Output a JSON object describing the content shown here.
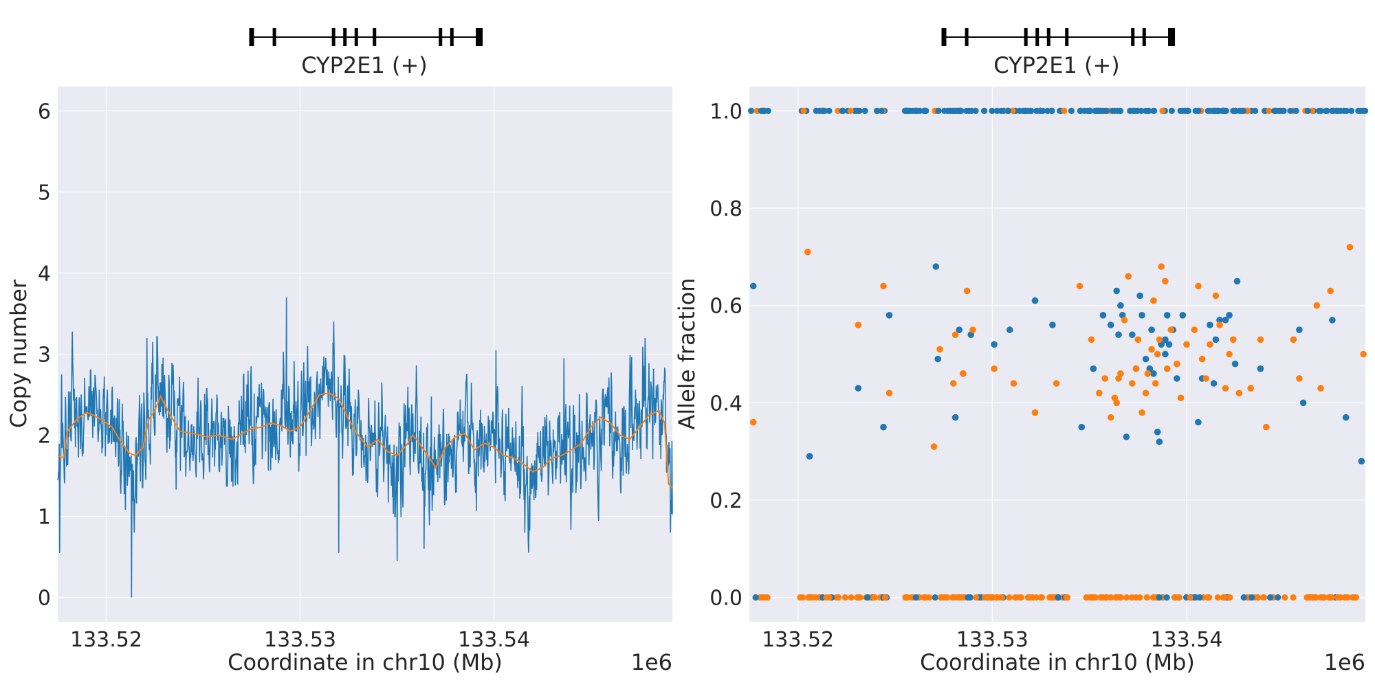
{
  "chart_data": [
    {
      "type": "line",
      "title": "",
      "gene": {
        "label": "CYP2E1 (+)",
        "exon_count": 9
      },
      "xlabel": "Coordinate in chr10 (Mb)",
      "ylabel": "Copy number",
      "x_offset_label": "1e6",
      "xlim": [
        133.5175,
        133.5492
      ],
      "ylim": [
        -0.3,
        6.3
      ],
      "xticks": [
        133.52,
        133.53,
        133.54
      ],
      "xtick_labels": [
        "133.52",
        "133.53",
        "133.54"
      ],
      "yticks": [
        0,
        1,
        2,
        3,
        4,
        5,
        6
      ],
      "ytick_labels": [
        "0",
        "1",
        "2",
        "3",
        "4",
        "5",
        "6"
      ],
      "grid": true,
      "series": [
        {
          "name": "raw copy number",
          "color": "#1f77b4",
          "points": "~1600 noisy values fluctuating around 2.0 (range approx. 0.0–3.7; spikes near 3.2 at 133.522, 3.7 at 133.529, 3.0 at 133.540 and 133.548; dips to 0.0 at 133.5213, 0.4 at 133.535)"
        },
        {
          "name": "smoothed copy number",
          "color": "#ff7f0e",
          "x": [
            133.5175,
            133.5178,
            133.518,
            133.5185,
            133.5188,
            133.519,
            133.5193,
            133.5197,
            133.5203,
            133.5208,
            133.5212,
            133.5215,
            133.5219,
            133.5222,
            133.5225,
            133.5228,
            133.5233,
            133.5238,
            133.5245,
            133.5252,
            133.5258,
            133.5265,
            133.527,
            133.5275,
            133.528,
            133.5285,
            133.529,
            133.5295,
            133.53,
            133.5305,
            133.531,
            133.5315,
            133.532,
            133.5325,
            133.533,
            133.5335,
            133.534,
            133.5345,
            133.535,
            133.5355,
            133.5358,
            133.536,
            133.5365,
            133.537,
            133.5375,
            133.538,
            133.5385,
            133.539,
            133.5395,
            133.54,
            133.5405,
            133.541,
            133.5415,
            133.542,
            133.5425,
            133.543,
            133.5435,
            133.544,
            133.5445,
            133.545,
            133.5455,
            133.546,
            133.5465,
            133.547,
            133.5475,
            133.548,
            133.5485,
            133.5488,
            133.549,
            133.5492
          ],
          "values": [
            1.75,
            1.72,
            2.05,
            2.2,
            2.25,
            2.28,
            2.25,
            2.2,
            2.1,
            1.9,
            1.78,
            1.75,
            1.85,
            2.2,
            2.3,
            2.48,
            2.25,
            2.05,
            2.02,
            1.98,
            2.0,
            1.95,
            2.02,
            2.08,
            2.1,
            2.15,
            2.12,
            2.05,
            2.1,
            2.3,
            2.5,
            2.52,
            2.45,
            2.2,
            2.0,
            1.85,
            1.95,
            1.8,
            1.75,
            1.88,
            2.0,
            1.95,
            1.78,
            1.6,
            1.85,
            1.98,
            2.02,
            1.82,
            1.9,
            1.85,
            1.75,
            1.72,
            1.65,
            1.55,
            1.6,
            1.72,
            1.75,
            1.82,
            1.9,
            2.1,
            2.22,
            2.15,
            2.0,
            1.95,
            2.1,
            2.25,
            2.3,
            2.15,
            1.4,
            1.35
          ]
        }
      ]
    },
    {
      "type": "scatter",
      "title": "",
      "gene": {
        "label": "CYP2E1 (+)",
        "exon_count": 9
      },
      "xlabel": "Coordinate in chr10 (Mb)",
      "ylabel": "Allele fraction",
      "x_offset_label": "1e6",
      "xlim": [
        133.5175,
        133.5492
      ],
      "ylim": [
        -0.05,
        1.05
      ],
      "xticks": [
        133.52,
        133.53,
        133.54
      ],
      "xtick_labels": [
        "133.52",
        "133.53",
        "133.54"
      ],
      "yticks": [
        0.0,
        0.2,
        0.4,
        0.6,
        0.8,
        1.0
      ],
      "ytick_labels": [
        "0.0",
        "0.2",
        "0.4",
        "0.6",
        "0.8",
        "1.0"
      ],
      "grid": true,
      "series": [
        {
          "name": "allele fraction (blue)",
          "color": "#1f77b4",
          "x": [
            133.5177,
            133.5206,
            133.5231,
            133.5244,
            133.5247,
            133.5271,
            133.5272,
            133.5281,
            133.5283,
            133.5285,
            133.5289,
            133.5301,
            133.5309,
            133.5322,
            133.5331,
            133.5346,
            133.5352,
            133.5357,
            133.5361,
            133.5364,
            133.5365,
            133.5366,
            133.5367,
            133.5369,
            133.5372,
            133.5374,
            133.5376,
            133.5377,
            133.5379,
            133.5381,
            133.5382,
            133.5383,
            133.5385,
            133.5386,
            133.5387,
            133.5389,
            133.5389,
            133.539,
            133.5391,
            133.5393,
            133.5395,
            133.5398,
            133.5406,
            133.5408,
            133.5412,
            133.5414,
            133.5415,
            133.5417,
            133.542,
            133.5422,
            133.5425,
            133.5426,
            133.5438,
            133.5458,
            133.546,
            133.5475,
            133.5482,
            133.549
          ],
          "values": [
            0.64,
            0.29,
            0.43,
            0.35,
            0.58,
            0.68,
            0.49,
            0.37,
            0.55,
            0.46,
            0.54,
            0.52,
            0.55,
            0.61,
            0.56,
            0.35,
            0.47,
            0.58,
            0.56,
            0.63,
            0.54,
            0.6,
            0.58,
            0.33,
            0.54,
            0.47,
            0.62,
            0.58,
            0.49,
            0.47,
            0.55,
            0.46,
            0.34,
            0.32,
            0.52,
            0.53,
            0.5,
            0.58,
            0.52,
            0.55,
            0.45,
            0.58,
            0.36,
            0.45,
            0.56,
            0.44,
            0.53,
            0.57,
            0.57,
            0.58,
            0.48,
            0.65,
            0.47,
            0.55,
            0.4,
            0.57,
            0.37,
            0.28
          ]
        },
        {
          "name": "allele fraction (orange)",
          "color": "#ff7f0e",
          "x": [
            133.5177,
            133.5205,
            133.5231,
            133.5244,
            133.5247,
            133.527,
            133.5273,
            133.528,
            133.5281,
            133.5285,
            133.5287,
            133.529,
            133.5301,
            133.5311,
            133.5322,
            133.5333,
            133.5345,
            133.5351,
            133.5355,
            133.5358,
            133.5361,
            133.5363,
            133.5364,
            133.5365,
            133.5366,
            133.5368,
            133.537,
            133.5372,
            133.5374,
            133.5375,
            133.5377,
            133.5379,
            133.538,
            133.5382,
            133.5383,
            133.5384,
            133.5385,
            133.5386,
            133.5387,
            133.5389,
            133.539,
            133.5392,
            133.5395,
            133.5397,
            133.54,
            133.5404,
            133.5406,
            133.5408,
            133.541,
            133.5412,
            133.5415,
            133.5417,
            133.542,
            133.5422,
            133.5424,
            133.5427,
            133.5433,
            133.5438,
            133.5441,
            133.5455,
            133.5458,
            133.5467,
            133.5469,
            133.5474,
            133.5484,
            133.5491
          ],
          "values": [
            0.36,
            0.71,
            0.56,
            0.64,
            0.42,
            0.31,
            0.51,
            0.44,
            0.54,
            0.46,
            0.63,
            0.55,
            0.47,
            0.44,
            0.38,
            0.44,
            0.64,
            0.53,
            0.42,
            0.45,
            0.37,
            0.41,
            0.4,
            0.45,
            0.46,
            0.57,
            0.66,
            0.44,
            0.47,
            0.53,
            0.38,
            0.42,
            0.46,
            0.51,
            0.61,
            0.44,
            0.5,
            0.53,
            0.68,
            0.65,
            0.47,
            0.55,
            0.48,
            0.41,
            0.52,
            0.55,
            0.64,
            0.49,
            0.45,
            0.52,
            0.62,
            0.56,
            0.43,
            0.5,
            0.53,
            0.42,
            0.43,
            0.53,
            0.35,
            0.53,
            0.45,
            0.6,
            0.43,
            0.63,
            0.72,
            0.5
          ]
        }
      ],
      "bands": [
        {
          "value": 1.0,
          "primary_color": "#1f77b4",
          "secondary_color": "#ff7f0e",
          "description": "dense row of points at allele fraction 1.0 (mostly blue with some orange)"
        },
        {
          "value": 0.0,
          "primary_color": "#ff7f0e",
          "secondary_color": "#1f77b4",
          "description": "dense row of points at allele fraction 0.0 (mostly orange with some blue)"
        }
      ]
    }
  ]
}
